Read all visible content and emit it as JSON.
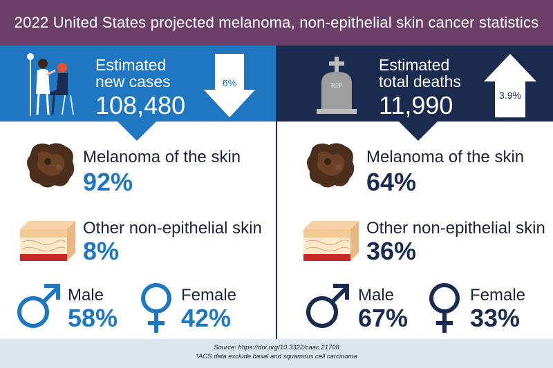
{
  "title": "2022 United States projected melanoma, non-epithelial skin cancer statistics",
  "colors": {
    "header": "#6c3f68",
    "left_band": "#1f77c2",
    "right_band": "#1b2b4f",
    "left_text": "#1f77c2",
    "right_text": "#1b2b4f",
    "footer": "#dde5ef"
  },
  "left": {
    "headline": "Estimated new cases",
    "number": "108,480",
    "change": "6%",
    "change_direction": "down",
    "melanoma_label": "Melanoma of the skin",
    "melanoma_pct": "92%",
    "other_label": "Other non-epithelial skin",
    "other_pct": "8%",
    "male_label": "Male",
    "male_pct": "58%",
    "female_label": "Female",
    "female_pct": "42%"
  },
  "right": {
    "headline": "Estimated total deaths",
    "number": "11,990",
    "change": "3.9%",
    "change_direction": "up",
    "tombstone_text": "RIP",
    "melanoma_label": "Melanoma of the skin",
    "melanoma_pct": "64%",
    "other_label": "Other non-epithelial skin",
    "other_pct": "36%",
    "male_label": "Male",
    "male_pct": "67%",
    "female_label": "Female",
    "female_pct": "33%"
  },
  "footer": {
    "source": "Source: https://doi.org/10.3322/caac.21708",
    "note": "*ACS data exclude basal and squamous cell carcinoma"
  }
}
